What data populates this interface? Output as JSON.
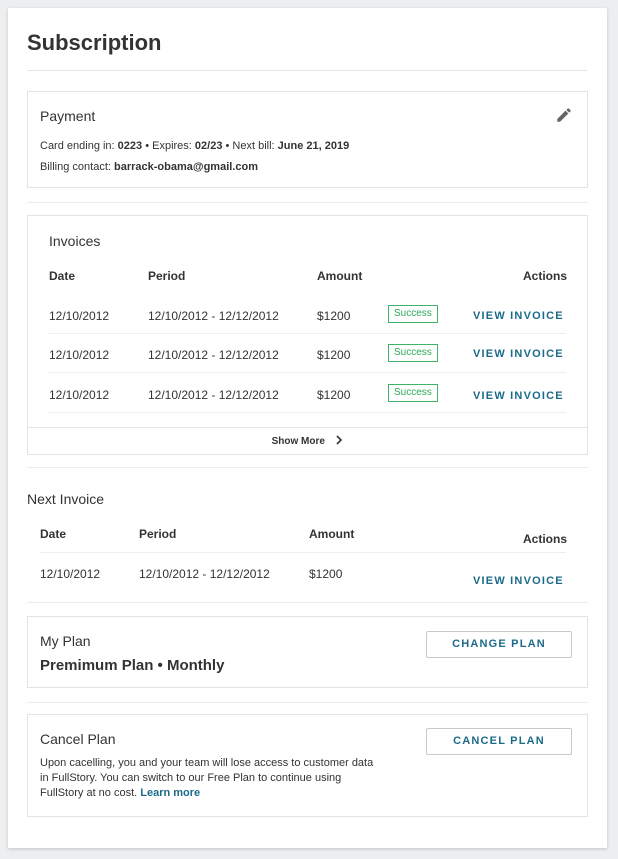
{
  "page": {
    "title": "Subscription"
  },
  "payment": {
    "heading": "Payment",
    "card_label": "Card ending in: ",
    "card_last4": "0223",
    "expires_label": " • Expires: ",
    "expires": "02/23",
    "next_bill_label": " • Next bill: ",
    "next_bill": "June 21, 2019",
    "billing_label": "Billing contact: ",
    "billing_contact": "barrack-obama@gmail.com",
    "edit_icon": "pencil-icon"
  },
  "invoices": {
    "heading": "Invoices",
    "columns": {
      "date": "Date",
      "period": "Period",
      "amount": "Amount",
      "actions": "Actions"
    },
    "rows": [
      {
        "date": "12/10/2012",
        "period": "12/10/2012 -  12/12/2012",
        "amount": "$1200",
        "status": "Success",
        "action": "VIEW INVOICE"
      },
      {
        "date": "12/10/2012",
        "period": "12/10/2012 -  12/12/2012",
        "amount": "$1200",
        "status": "Success",
        "action": "VIEW INVOICE"
      },
      {
        "date": "12/10/2012",
        "period": "12/10/2012 -  12/12/2012",
        "amount": "$1200",
        "status": "Success",
        "action": "VIEW INVOICE"
      }
    ],
    "show_more": "Show More",
    "show_more_icon": "chevron-right-icon"
  },
  "next_invoice": {
    "heading": "Next Invoice",
    "columns": {
      "date": "Date",
      "period": "Period",
      "amount": "Amount",
      "actions": "Actions"
    },
    "row": {
      "date": "12/10/2012",
      "period": "12/10/2012 -  12/12/2012",
      "amount": "$1200",
      "action": "VIEW INVOICE"
    }
  },
  "plan": {
    "heading": "My Plan",
    "name": "Premimum Plan • Monthly",
    "button": "CHANGE PLAN"
  },
  "cancel": {
    "heading": "Cancel Plan",
    "description": "Upon cacelling, you and your team will lose access to customer data in FullStory. You can switch to our Free Plan to continue using FullStory at no cost. ",
    "learn_more": "Learn more",
    "button": "CANCEL PLAN"
  },
  "colors": {
    "accent": "#1b6a8a",
    "success": "#2fa75a"
  }
}
